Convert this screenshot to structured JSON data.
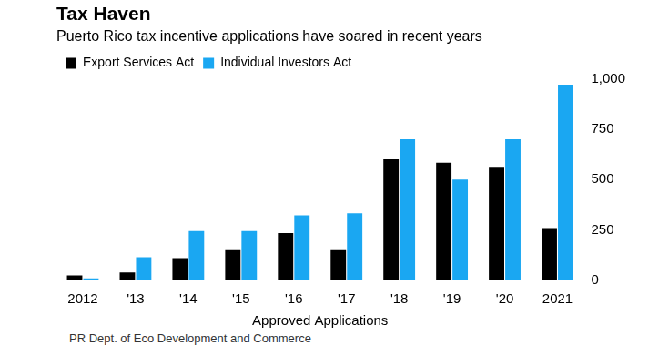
{
  "chart_data": {
    "type": "bar",
    "title": "Tax Haven",
    "subtitle": "Puerto Rico tax incentive applications have soared in recent years",
    "x_label": "Approved Applications",
    "source": "PR Dept. of Eco Development and Commerce",
    "categories": [
      "2012",
      "'13",
      "'14",
      "'15",
      "'16",
      "'17",
      "'18",
      "'19",
      "'20",
      "2021"
    ],
    "series": [
      {
        "name": "Export Services Act",
        "color": "#000000",
        "values": [
          25,
          40,
          110,
          150,
          235,
          150,
          600,
          583,
          563,
          260
        ]
      },
      {
        "name": "Individual Investors Act",
        "color": "#1aa7f2",
        "values": [
          10,
          115,
          245,
          245,
          323,
          333,
          700,
          500,
          700,
          970
        ]
      }
    ],
    "ylim": [
      0,
      1000
    ],
    "yticks": [
      0,
      250,
      500,
      750,
      {
        "value": 1000,
        "label": "1,000"
      }
    ],
    "grid": false,
    "legend": "top-left"
  }
}
